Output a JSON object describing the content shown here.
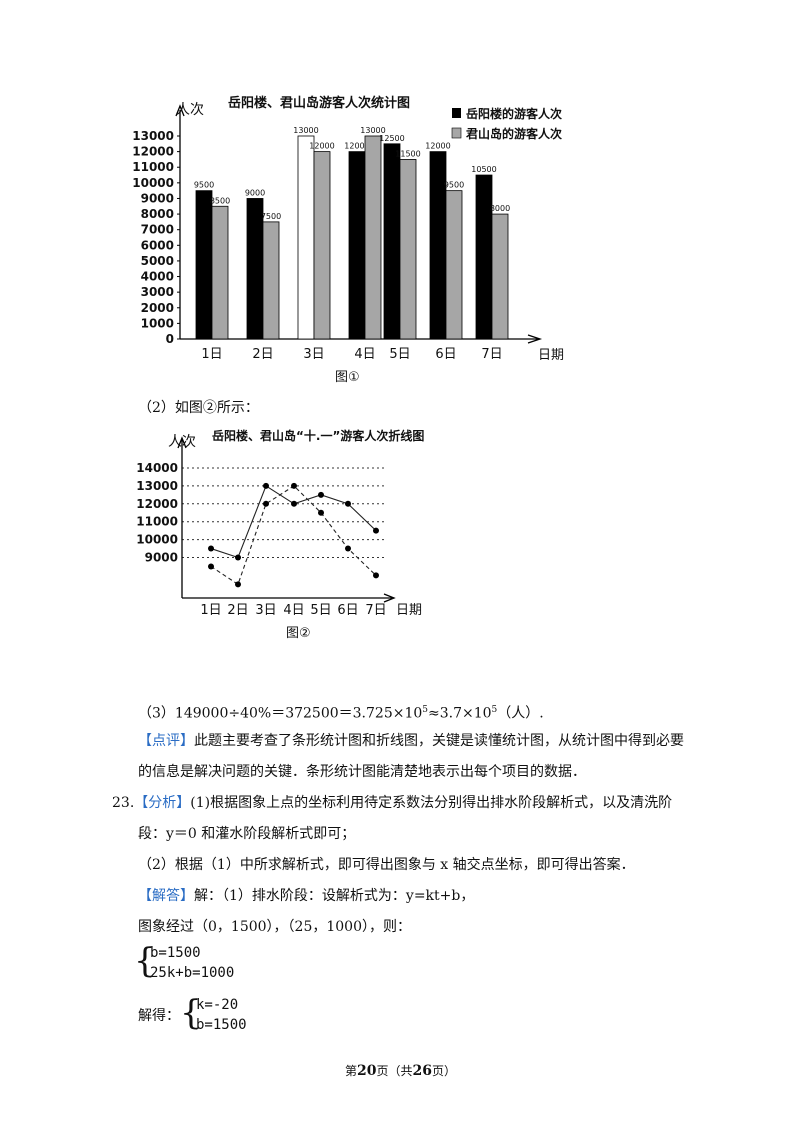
{
  "chart1": {
    "title": "岳阳楼、君山岛游客人次统计图",
    "ylabel": "人次",
    "xlabel": "日期",
    "caption": "图①",
    "legend": [
      "岳阳楼的游客人次",
      "君山岛的游客人次"
    ],
    "yticks": [
      "0",
      "1000",
      "2000",
      "3000",
      "4000",
      "5000",
      "6000",
      "7000",
      "8000",
      "9000",
      "10000",
      "11000",
      "12000",
      "13000"
    ]
  },
  "chart2": {
    "title": "岳阳楼、君山岛“十.一”游客人次折线图",
    "ylabel": "人次",
    "xlabel": "日期",
    "caption": "图②",
    "yticks": [
      "9000",
      "10000",
      "11000",
      "12000",
      "13000",
      "14000"
    ]
  },
  "chart_data": [
    {
      "type": "bar",
      "title": "岳阳楼、君山岛游客人次统计图",
      "xlabel": "日期",
      "ylabel": "人次",
      "categories": [
        "1日",
        "2日",
        "3日",
        "4日",
        "5日",
        "6日",
        "7日"
      ],
      "series": [
        {
          "name": "岳阳楼的游客人次",
          "values": [
            9500,
            9000,
            13000,
            12000,
            12500,
            12000,
            10500
          ],
          "labels": [
            "9500",
            "9000",
            "13000",
            "12000",
            "12500",
            "12000",
            "10500"
          ]
        },
        {
          "name": "君山岛的游客人次",
          "values": [
            8500,
            7500,
            12000,
            13000,
            11500,
            9500,
            8000
          ],
          "labels": [
            "8500",
            "7500",
            "12000",
            "13000",
            "11500",
            "9500",
            "8000"
          ]
        }
      ],
      "ylim": [
        0,
        13000
      ],
      "colors": [
        "#000000",
        "#a6a6a6"
      ],
      "legend_position": "top-right"
    },
    {
      "type": "line",
      "title": "岳阳楼、君山岛“十.一”游客人次折线图",
      "xlabel": "日期",
      "ylabel": "人次",
      "categories": [
        "1日",
        "2日",
        "3日",
        "4日",
        "5日",
        "6日",
        "7日"
      ],
      "series": [
        {
          "values": [
            9500,
            9000,
            13000,
            12000,
            12500,
            12000,
            10500
          ],
          "style": "solid"
        },
        {
          "values": [
            8500,
            7500,
            12000,
            13000,
            11500,
            9500,
            8000
          ],
          "style": "dashed"
        }
      ],
      "ylim": [
        7000,
        14000
      ],
      "yticks": [
        9000,
        10000,
        11000,
        12000,
        13000,
        14000
      ],
      "grid": "dotted horizontal"
    }
  ],
  "text": {
    "p2": "（2）如图②所示：",
    "p3_a": "（3）149000÷40%＝372500＝3.725×10",
    "p3_sup1": "5",
    "p3_b": "≈3.7×10",
    "p3_sup2": "5",
    "p3_c": "（人）.",
    "review_tag": "【点评】",
    "review_1": "此题主要考查了条形统计图和折线图，关键是读懂统计图，从统计图中得到必要",
    "review_2": "的信息是解决问题的关键．条形统计图能清楚地表示出每个项目的数据．",
    "q23_num": "23.",
    "analysis_tag": "【分析】",
    "analysis_1": "(1)根据图象上点的坐标利用待定系数法分别得出排水阶段解析式，以及清洗阶",
    "analysis_2": "段：y＝0 和灌水阶段解析式即可；",
    "analysis_3": "（2）根据（1）中所求解析式，即可得出图象与 x 轴交点坐标，即可得出答案．",
    "answer_tag": "【解答】",
    "answer_1": "解：（1）排水阶段：设解析式为：y=kt+b，",
    "answer_2": "图象经过（0，1500），（25，1000），则：",
    "eq1_a": "b=1500",
    "eq1_b": "25k+b=1000",
    "solve_label": "解得：",
    "eq2_a": "k=-20",
    "eq2_b": "b=1500",
    "footer_a": "第",
    "footer_page": "20",
    "footer_b": "页（共",
    "footer_total": "26",
    "footer_c": "页）"
  }
}
